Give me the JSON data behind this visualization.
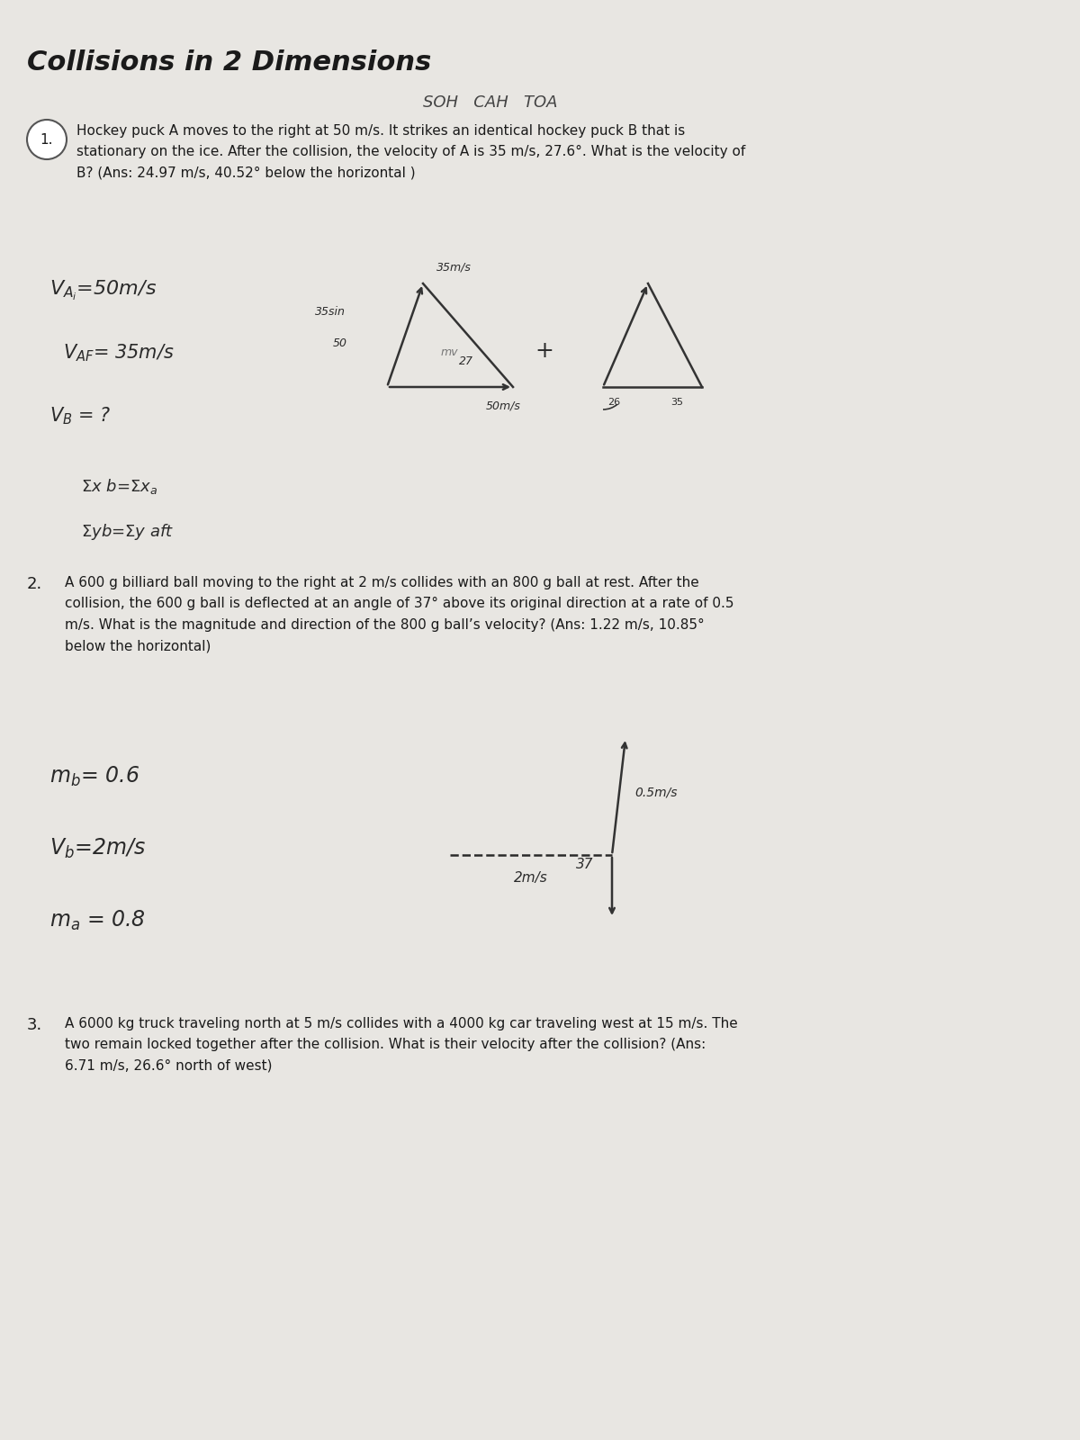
{
  "title": "Collisions in 2 Dimensions",
  "soh_cah_toa": "SOH   CAH   TOA",
  "bg_color": "#e8e6e2",
  "q1_text": "Hockey puck A moves to the right at 50 m/s. It strikes an identical hockey puck B that is\nstationary on the ice. After the collision, the velocity of A is 35 m/s, 27.6°. What is the velocity of\nB? (Ans: 24.97 m/s, 40.52° below the horizontal )",
  "q2_text": "A 600 g billiard ball moving to the right at 2 m/s collides with an 800 g ball at rest. After the\ncollision, the 600 g ball is deflected at an angle of 37° above its original direction at a rate of 0.5\nm/s. What is the magnitude and direction of the 800 g ball’s velocity? (Ans: 1.22 m/s, 10.85°\nbelow the horizontal)",
  "q3_text": "A 6000 kg truck traveling north at 5 m/s collides with a 4000 kg car traveling west at 15 m/s. The\ntwo remain locked together after the collision. What is their velocity after the collision? (Ans:\n6.71 m/s, 26.6° north of west)",
  "text_color": "#1a1a1a",
  "hand_color": "#2a2a2a",
  "arrow_color": "#333333"
}
